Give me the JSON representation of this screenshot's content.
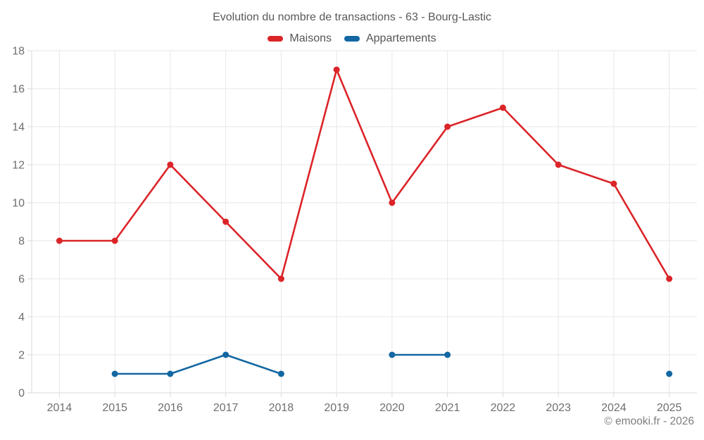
{
  "title": "Evolution du nombre de transactions - 63 - Bourg-Lastic",
  "legend": [
    {
      "label": "Maisons",
      "color": "#db2428"
    },
    {
      "label": "Appartements",
      "color": "#1367a2"
    }
  ],
  "footer": "© emooki.fr - 2026",
  "colors": {
    "grid": "#e7e7e7",
    "axis_border": "#d9d9d9",
    "tick_label": "#6f6f6f",
    "maisons": "#db2428",
    "appartements": "#1367a2"
  },
  "chart_data": {
    "type": "line",
    "title": "Evolution du nombre de transactions - 63 - Bourg-Lastic",
    "xlabel": "",
    "ylabel": "",
    "legend_position": "top",
    "grid": true,
    "ylim": [
      0,
      18
    ],
    "ytick_step": 2,
    "categories": [
      "2014",
      "2015",
      "2016",
      "2017",
      "2018",
      "2019",
      "2020",
      "2021",
      "2022",
      "2023",
      "2024",
      "2025"
    ],
    "series": [
      {
        "name": "Maisons",
        "color": "#db2428",
        "values": [
          8,
          8,
          12,
          9,
          6,
          17,
          10,
          14,
          15,
          12,
          11,
          6
        ]
      },
      {
        "name": "Appartements",
        "color": "#1367a2",
        "values": [
          null,
          1,
          1,
          2,
          1,
          null,
          2,
          2,
          null,
          null,
          null,
          1
        ]
      }
    ]
  }
}
